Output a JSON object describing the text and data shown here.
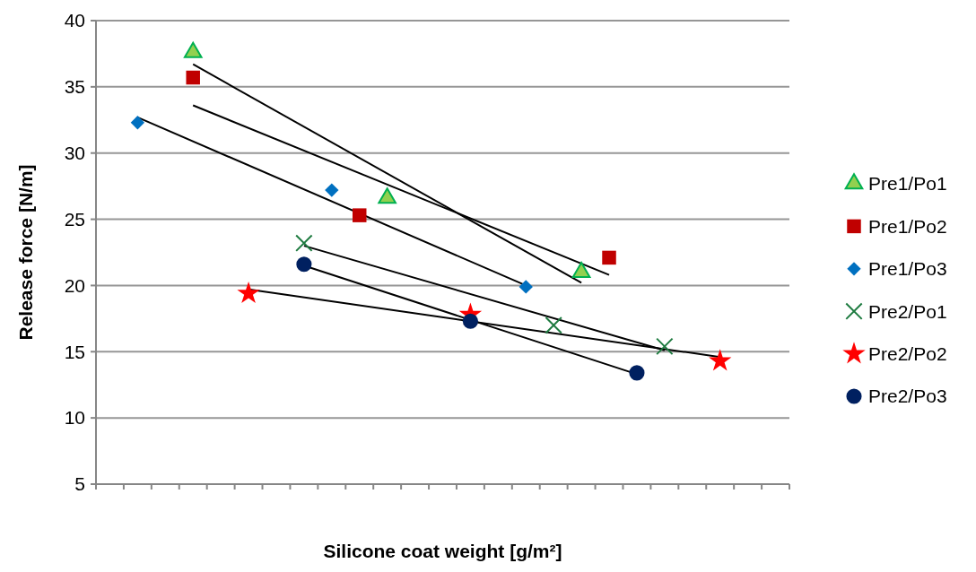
{
  "chart_data": {
    "type": "scatter",
    "xlabel": "Silicone coat weight [g/m²]",
    "ylabel": "Release force [N/m]",
    "categories": [
      null,
      null,
      null,
      null,
      null,
      null,
      null,
      null,
      null,
      null,
      null,
      null,
      null,
      null,
      null,
      null,
      null,
      null,
      null,
      null,
      null,
      null,
      null,
      null,
      null
    ],
    "ylim": [
      5,
      40
    ],
    "yticks": [
      5,
      10,
      15,
      20,
      25,
      30,
      35,
      40
    ],
    "tick_labels": "y",
    "grid": "y",
    "legend": "right",
    "series": [
      {
        "name": "Pre1/Po1",
        "marker": "triangle",
        "color": "#92d050",
        "values": [
          null,
          null,
          null,
          37.6,
          null,
          null,
          null,
          null,
          null,
          null,
          26.6,
          null,
          null,
          null,
          null,
          null,
          null,
          21.0,
          null,
          null,
          null,
          null,
          null,
          null,
          null
        ]
      },
      {
        "name": "Pre1/Po2",
        "marker": "square",
        "color": "#c00000",
        "values": [
          null,
          null,
          null,
          35.7,
          null,
          null,
          null,
          null,
          null,
          25.3,
          null,
          null,
          null,
          null,
          null,
          null,
          null,
          null,
          22.1,
          null,
          null,
          null,
          null,
          null,
          null
        ]
      },
      {
        "name": "Pre1/Po3",
        "marker": "diamond",
        "color": "#0070c0",
        "values": [
          null,
          32.3,
          null,
          null,
          null,
          null,
          null,
          null,
          27.2,
          null,
          null,
          null,
          null,
          null,
          null,
          19.9,
          null,
          null,
          null,
          null,
          null,
          null,
          null,
          null,
          null
        ]
      },
      {
        "name": "Pre2/Po1",
        "marker": "cross",
        "color": "#1e7b40",
        "values": [
          null,
          null,
          null,
          null,
          null,
          null,
          null,
          23.2,
          null,
          null,
          null,
          null,
          null,
          null,
          null,
          null,
          17.0,
          null,
          null,
          null,
          15.4,
          null,
          null,
          null,
          null
        ]
      },
      {
        "name": "Pre2/Po2",
        "marker": "star",
        "color": "#ff0000",
        "values": [
          null,
          null,
          null,
          null,
          null,
          19.4,
          null,
          null,
          null,
          null,
          null,
          null,
          null,
          17.8,
          null,
          null,
          null,
          null,
          null,
          null,
          null,
          null,
          14.3,
          null,
          null
        ]
      },
      {
        "name": "Pre2/Po3",
        "marker": "circle",
        "color": "#002060",
        "values": [
          null,
          null,
          null,
          null,
          null,
          null,
          null,
          21.6,
          null,
          null,
          null,
          null,
          null,
          17.3,
          null,
          null,
          null,
          null,
          null,
          13.4,
          null,
          null,
          null,
          null,
          null
        ]
      },
      {
        "type": "line",
        "color": "#000000",
        "values": [
          null,
          null,
          null,
          36.7,
          null,
          null,
          null,
          null,
          null,
          null,
          null,
          null,
          null,
          null,
          null,
          null,
          null,
          20.2,
          null,
          null,
          null,
          null,
          null,
          null,
          null
        ]
      },
      {
        "type": "line",
        "color": "#000000",
        "values": [
          null,
          null,
          null,
          33.6,
          null,
          null,
          null,
          null,
          null,
          null,
          null,
          null,
          null,
          null,
          null,
          null,
          null,
          null,
          20.8,
          null,
          null,
          null,
          null,
          null,
          null
        ]
      },
      {
        "type": "line",
        "color": "#000000",
        "values": [
          null,
          32.7,
          null,
          null,
          null,
          null,
          null,
          null,
          null,
          null,
          null,
          null,
          null,
          null,
          null,
          20.0,
          null,
          null,
          null,
          null,
          null,
          null,
          null,
          null,
          null
        ]
      },
      {
        "type": "line",
        "color": "#000000",
        "values": [
          null,
          null,
          null,
          null,
          null,
          null,
          null,
          23.0,
          null,
          null,
          null,
          null,
          null,
          null,
          null,
          null,
          null,
          null,
          null,
          null,
          15.1,
          null,
          null,
          null,
          null
        ]
      },
      {
        "type": "line",
        "color": "#000000",
        "values": [
          null,
          null,
          null,
          null,
          null,
          19.7,
          null,
          null,
          null,
          null,
          null,
          null,
          null,
          null,
          null,
          null,
          null,
          null,
          null,
          null,
          null,
          null,
          14.6,
          null,
          null
        ]
      },
      {
        "type": "line",
        "color": "#000000",
        "values": [
          null,
          null,
          null,
          null,
          null,
          null,
          null,
          21.5,
          null,
          null,
          null,
          null,
          null,
          null,
          null,
          null,
          null,
          null,
          null,
          13.3,
          null,
          null,
          null,
          null,
          null
        ]
      }
    ]
  }
}
